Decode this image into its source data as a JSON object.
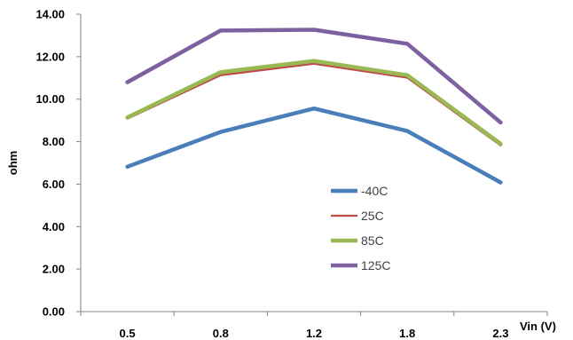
{
  "chart_data": {
    "type": "line",
    "title": "",
    "xlabel": "Vin (V)",
    "ylabel": "ohm",
    "categories": [
      "0.5",
      "0.8",
      "1.2",
      "1.8",
      "2.3"
    ],
    "ylim": [
      0,
      14
    ],
    "ytick_labels": [
      "0.00",
      "2.00",
      "4.00",
      "6.00",
      "8.00",
      "10.00",
      "12.00",
      "14.00"
    ],
    "grid": false,
    "legend_position": "inside-bottom-center",
    "series": [
      {
        "name": "-40C",
        "color": "#4a7ebb",
        "values": [
          6.82,
          8.46,
          9.56,
          8.5,
          6.08
        ]
      },
      {
        "name": "25C",
        "color": "#be4b48",
        "values": [
          9.08,
          11.13,
          11.67,
          11.01,
          7.82
        ]
      },
      {
        "name": "85C",
        "color": "#98b954",
        "values": [
          9.14,
          11.27,
          11.8,
          11.13,
          7.9
        ]
      },
      {
        "name": "125C",
        "color": "#7d60a0",
        "values": [
          10.8,
          13.23,
          13.27,
          12.61,
          8.9
        ]
      }
    ]
  }
}
